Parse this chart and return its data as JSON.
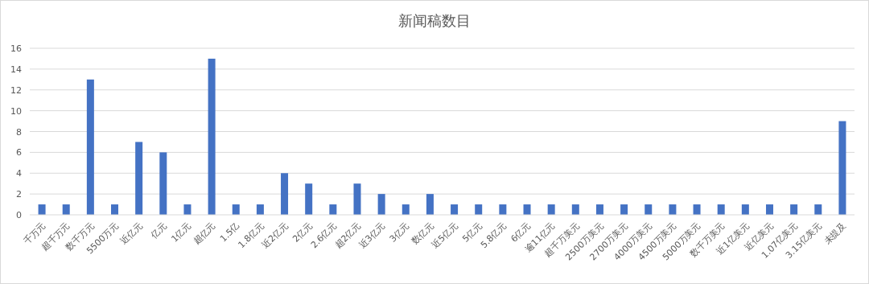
{
  "chart_data": {
    "type": "bar",
    "title": "新闻稿数目",
    "categories": [
      "千万元",
      "超千万元",
      "数千万元",
      "5500万元",
      "近亿元",
      "亿元",
      "1亿元",
      "超亿元",
      "1.5亿",
      "1.8亿元",
      "近2亿元",
      "2亿元",
      "2.6亿元",
      "超2亿元",
      "近3亿元",
      "3亿元",
      "数亿元",
      "近5亿元",
      "5亿元",
      "5.8亿元",
      "6亿元",
      "逾11亿元",
      "超千万美元",
      "2500万美元",
      "2700万美元",
      "4000万美元",
      "4500万美元",
      "5000万美元",
      "数千万美元",
      "近1亿美元",
      "近亿美元",
      "1.07亿美元",
      "3.15亿美元",
      "未提及"
    ],
    "values": [
      1,
      1,
      13,
      1,
      7,
      6,
      1,
      15,
      1,
      1,
      4,
      3,
      1,
      3,
      2,
      1,
      2,
      1,
      1,
      1,
      1,
      1,
      1,
      1,
      1,
      1,
      1,
      1,
      1,
      1,
      1,
      1,
      1,
      9
    ],
    "color": "#4472c4",
    "ylim": [
      0,
      16
    ],
    "yticks": [
      0,
      2,
      4,
      6,
      8,
      10,
      12,
      14,
      16
    ],
    "grid": "y"
  }
}
